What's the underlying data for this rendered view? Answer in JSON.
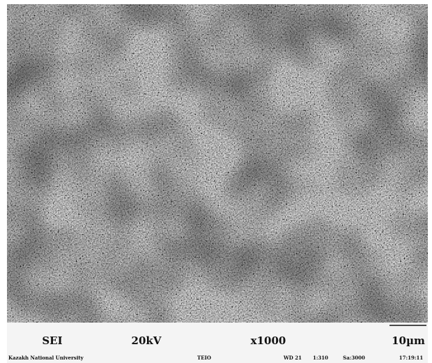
{
  "info_bar": {
    "detector": "SEI",
    "voltage": "20kV",
    "magnification": "x1000",
    "scale": "10µm",
    "institution": "Kazakh National University",
    "fields": [
      "TEIO",
      "WD 21",
      "1:310",
      "Sa:3000",
      "17:19:11"
    ]
  }
}
